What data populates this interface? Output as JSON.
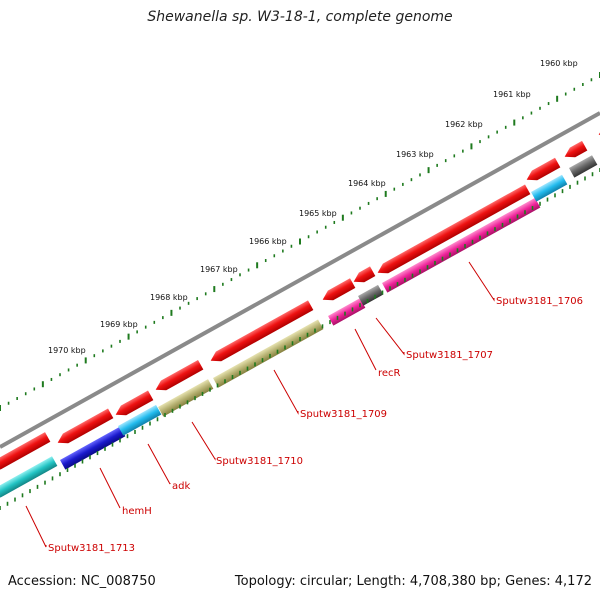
{
  "title": "Shewanella sp. W3-18-1, complete genome",
  "footer": {
    "accession": "Accession: NC_008750",
    "summary": "Topology: circular; Length: 4,708,380 bp; Genes: 4,172"
  },
  "map": {
    "backbone_color": "#8a8a8a",
    "tick_color": "#1e7a1e",
    "scale_labels": [
      "1960 kbp",
      "1961 kbp",
      "1962 kbp",
      "1963 kbp",
      "1964 kbp",
      "1965 kbp",
      "1966 kbp",
      "1967 kbp",
      "1968 kbp",
      "1969 kbp",
      "1970 kbp"
    ],
    "feature_colors": {
      "red": "#ee1111",
      "cyan": "#22c3c3",
      "blue": "#1a1acc",
      "skyblue": "#22bbee",
      "olive": "#b5b070",
      "magenta": "#ee2299",
      "gray": "#666666"
    },
    "gene_labels": [
      "Sputw3181_1706",
      "Sputw3181_1707",
      "recR",
      "Sputw3181_1709",
      "Sputw3181_1710",
      "adk",
      "hemH",
      "Sputw3181_1713"
    ]
  }
}
